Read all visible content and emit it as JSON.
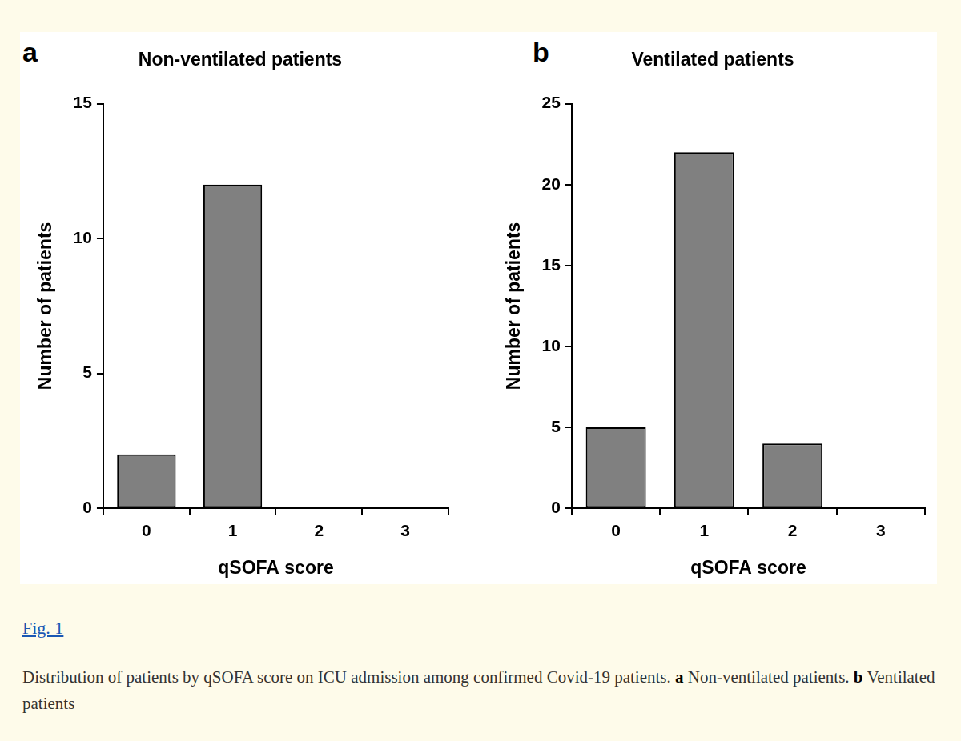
{
  "figure_label": "Fig. 1",
  "caption": [
    {
      "text": "Distribution of patients by qSOFA score on ICU admission among confirmed Covid-19 patients. "
    },
    {
      "text": "a",
      "bold": true
    },
    {
      "text": " Non-ventilated patients. "
    },
    {
      "text": "b",
      "bold": true
    },
    {
      "text": " Ventilated patients"
    }
  ],
  "chart_data": [
    {
      "type": "bar",
      "panel": "a",
      "title": "Non-ventilated patients",
      "x_label": "qSOFA score",
      "y_label": "Number of patients",
      "categories": [
        "0",
        "1",
        "2",
        "3"
      ],
      "values": [
        2,
        12,
        0,
        0
      ],
      "color": "#808080",
      "ylim": [
        0,
        15
      ],
      "yticks": [
        0,
        5,
        10,
        15
      ],
      "grid": false,
      "legend": false
    },
    {
      "type": "bar",
      "panel": "b",
      "title": "Ventilated patients",
      "x_label": "qSOFA score",
      "y_label": "Number of patients",
      "categories": [
        "0",
        "1",
        "2",
        "3"
      ],
      "values": [
        5,
        22,
        4,
        0
      ],
      "color": "#808080",
      "ylim": [
        0,
        25
      ],
      "yticks": [
        0,
        5,
        10,
        15,
        20,
        25
      ],
      "grid": false,
      "legend": false
    }
  ]
}
